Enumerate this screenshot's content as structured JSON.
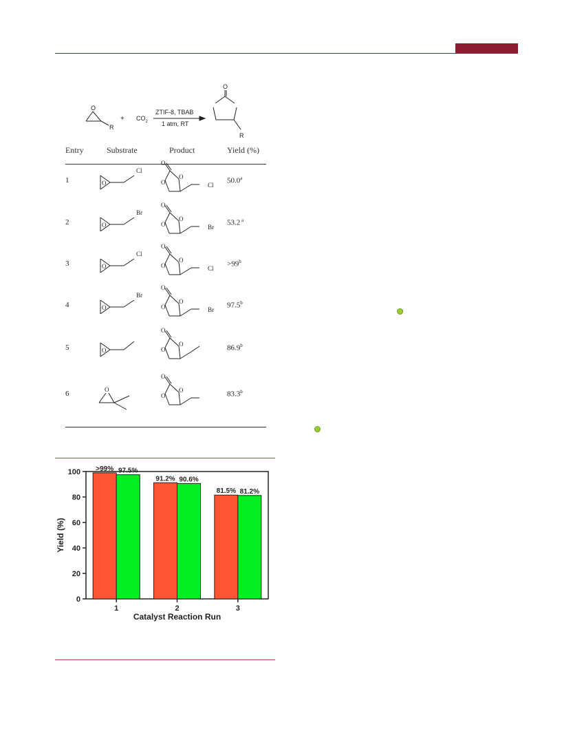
{
  "scheme": {
    "reactant_r": "R",
    "reactant_o": "O",
    "plus": "+",
    "co2": "CO",
    "co2_sub": "2",
    "conditions_top": "ZTIF-8, TBAB",
    "conditions_bottom": "1 atm, RT",
    "product_r": "R",
    "product_o": "O"
  },
  "table": {
    "headers": [
      "Entry",
      "Substrate",
      "Product",
      "Yield (%)"
    ],
    "rows": [
      {
        "entry": "1",
        "substituent": "Cl",
        "yield": "50.0",
        "note": "a"
      },
      {
        "entry": "2",
        "substituent": "Br",
        "yield": "53.2",
        "note": " a"
      },
      {
        "entry": "3",
        "substituent": "Cl",
        "yield": ">99",
        "note": "b"
      },
      {
        "entry": "4",
        "substituent": "Br",
        "yield": "97.5",
        "note": "b"
      },
      {
        "entry": "5",
        "substituent": "",
        "yield": "86.9",
        "note": "b"
      },
      {
        "entry": "6",
        "substituent": "",
        "yield": "83.3",
        "note": "b"
      }
    ]
  },
  "chart_data": {
    "type": "bar",
    "categories": [
      "1",
      "2",
      "3"
    ],
    "series": [
      {
        "values": [
          99,
          91.2,
          81.5
        ],
        "labels": [
          ">99%",
          "91.2%",
          "81.5%"
        ],
        "color": "#ff5533"
      },
      {
        "values": [
          97.5,
          90.6,
          81.2
        ],
        "labels": [
          "97.5%",
          "90.6%",
          "81.2%"
        ],
        "color": "#00ee22"
      }
    ],
    "xlabel": "Catalyst Reaction Run",
    "ylabel": "Yield (%)",
    "ylim": [
      0,
      100
    ],
    "yticks": [
      "0",
      "20",
      "40",
      "60",
      "80",
      "100"
    ]
  },
  "colors": {
    "accent": "#8b1e2f",
    "rule": "#b4475a",
    "dot": "#9acd32"
  }
}
